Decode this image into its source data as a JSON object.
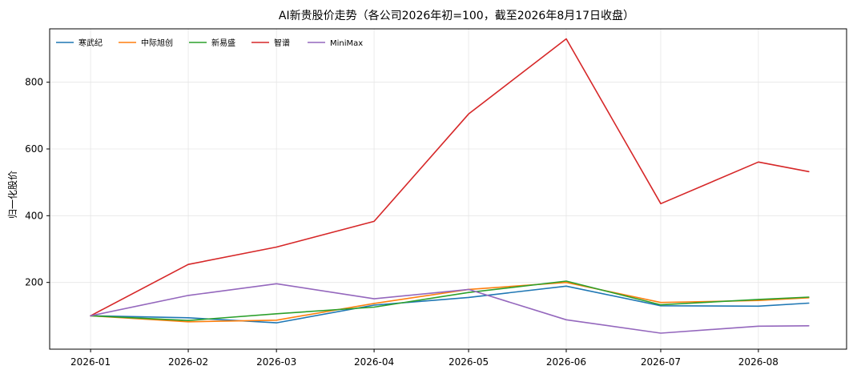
{
  "chart_data": {
    "type": "line",
    "title": "AI新贵股价走势（各公司2026年初=100，截至2026年8月17日收盘）",
    "xlabel": "",
    "ylabel": "归一化股价",
    "x": [
      "2026-01-01",
      "2026-02-01",
      "2026-03-01",
      "2026-04-01",
      "2026-05-01",
      "2026-06-01",
      "2026-07-01",
      "2026-08-01",
      "2026-08-17"
    ],
    "xticks": [
      "2026-01",
      "2026-02",
      "2026-03",
      "2026-04",
      "2026-05",
      "2026-06",
      "2026-07",
      "2026-08"
    ],
    "yticks": [
      200,
      400,
      600,
      800
    ],
    "ylim": [
      0,
      960
    ],
    "grid": true,
    "legend_position": "top-left",
    "series": [
      {
        "name": "寒武纪",
        "color": "#1f77b4",
        "values": [
          100,
          94,
          79,
          132,
          155,
          189,
          130,
          129,
          138
        ]
      },
      {
        "name": "中际旭创",
        "color": "#ff7f0e",
        "values": [
          100,
          82,
          87,
          137,
          179,
          200,
          140,
          146,
          154
        ]
      },
      {
        "name": "新易盛",
        "color": "#2ca02c",
        "values": [
          100,
          86,
          106,
          126,
          170,
          204,
          133,
          149,
          156
        ]
      },
      {
        "name": "智谱",
        "color": "#d62728",
        "values": [
          100,
          254,
          306,
          383,
          705,
          930,
          436,
          561,
          532
        ]
      },
      {
        "name": "MiniMax",
        "color": "#9467bd",
        "values": [
          100,
          161,
          196,
          151,
          179,
          88,
          48,
          69,
          70
        ]
      }
    ]
  }
}
